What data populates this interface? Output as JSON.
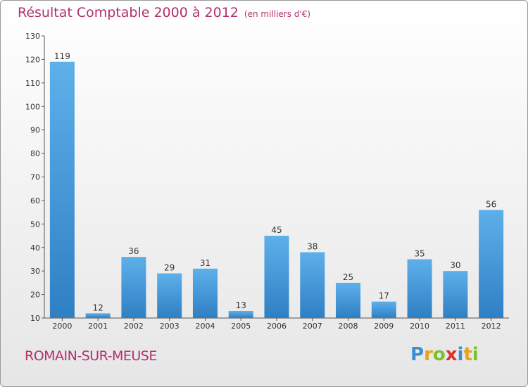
{
  "header": {
    "title": "Résultat Comptable 2000 à 2012",
    "subtitle": "(en milliers d'€)"
  },
  "footer": {
    "commune": "ROMAIN-SUR-MEUSE",
    "logo_letters": [
      "P",
      "r",
      "o",
      "x",
      "i",
      "t",
      "i"
    ]
  },
  "colors": {
    "bar_top": "#5eb0ea",
    "bar_bottom": "#2f7fc4",
    "accent": "#b3306b"
  },
  "chart_data": {
    "type": "bar",
    "title": "Résultat Comptable 2000 à 2012",
    "subtitle": "(en milliers d'€)",
    "categories": [
      "2000",
      "2001",
      "2002",
      "2003",
      "2004",
      "2005",
      "2006",
      "2007",
      "2008",
      "2009",
      "2010",
      "2011",
      "2012"
    ],
    "values": [
      119,
      12,
      36,
      29,
      31,
      13,
      45,
      38,
      25,
      17,
      35,
      30,
      56
    ],
    "ylim": [
      10,
      130
    ],
    "yticks": [
      10,
      20,
      30,
      40,
      50,
      60,
      70,
      80,
      90,
      100,
      110,
      120,
      130
    ],
    "grid": false
  }
}
